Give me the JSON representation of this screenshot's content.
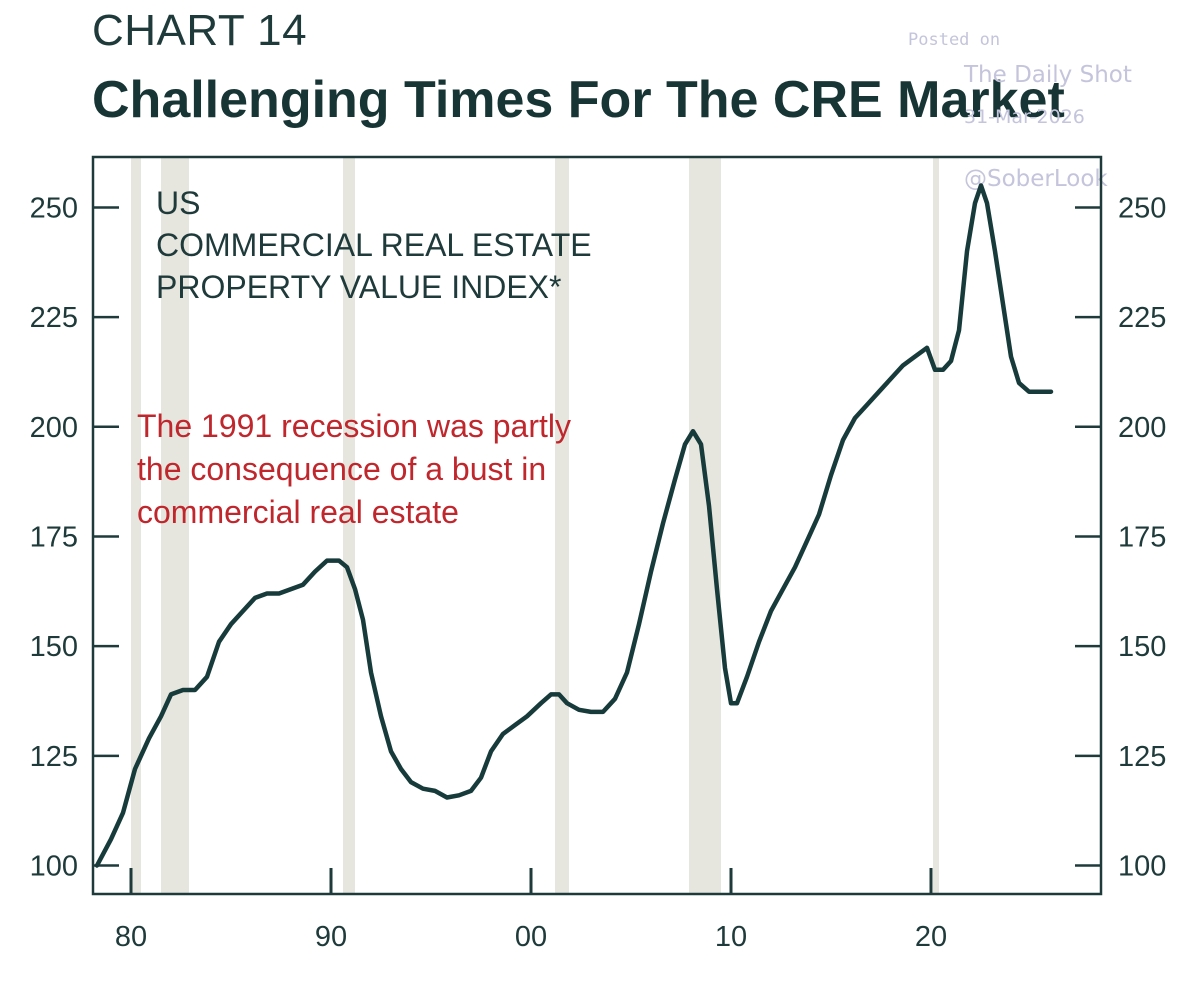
{
  "header": {
    "kicker": "CHART 14",
    "title": "Challenging Times For The CRE Market"
  },
  "watermark": {
    "posted": "Posted on",
    "source": "The Daily Shot",
    "date": "31-Mar-2026",
    "handle": "@SoberLook"
  },
  "chart_data": {
    "type": "line",
    "series": [
      {
        "values": [
          [
            1978.3,
            100
          ],
          [
            1979.0,
            106
          ],
          [
            1979.6,
            112
          ],
          [
            1980.2,
            122
          ],
          [
            1980.9,
            129
          ],
          [
            1981.5,
            134
          ],
          [
            1982.0,
            139
          ],
          [
            1982.6,
            140
          ],
          [
            1983.2,
            140
          ],
          [
            1983.8,
            143
          ],
          [
            1984.4,
            151
          ],
          [
            1985.0,
            155
          ],
          [
            1985.6,
            158
          ],
          [
            1986.2,
            161
          ],
          [
            1986.8,
            162
          ],
          [
            1987.4,
            162
          ],
          [
            1988.0,
            163
          ],
          [
            1988.6,
            164
          ],
          [
            1989.2,
            167
          ],
          [
            1989.8,
            169.5
          ],
          [
            1990.4,
            169.5
          ],
          [
            1990.8,
            168
          ],
          [
            1991.2,
            163
          ],
          [
            1991.6,
            156
          ],
          [
            1992.0,
            144
          ],
          [
            1992.5,
            134
          ],
          [
            1993.0,
            126
          ],
          [
            1993.5,
            122
          ],
          [
            1994.0,
            119
          ],
          [
            1994.6,
            117.5
          ],
          [
            1995.2,
            117
          ],
          [
            1995.8,
            115.5
          ],
          [
            1996.4,
            116
          ],
          [
            1997.0,
            117
          ],
          [
            1997.5,
            120
          ],
          [
            1998.0,
            126
          ],
          [
            1998.6,
            130
          ],
          [
            1999.2,
            132
          ],
          [
            1999.8,
            134
          ],
          [
            2000.5,
            137
          ],
          [
            2001.0,
            139
          ],
          [
            2001.4,
            139
          ],
          [
            2001.8,
            137
          ],
          [
            2002.4,
            135.5
          ],
          [
            2003.0,
            135
          ],
          [
            2003.6,
            135
          ],
          [
            2004.2,
            138
          ],
          [
            2004.8,
            144
          ],
          [
            2005.4,
            155
          ],
          [
            2006.0,
            167
          ],
          [
            2006.6,
            178
          ],
          [
            2007.2,
            188
          ],
          [
            2007.7,
            196
          ],
          [
            2008.1,
            199
          ],
          [
            2008.5,
            196
          ],
          [
            2008.9,
            182
          ],
          [
            2009.3,
            163
          ],
          [
            2009.7,
            145
          ],
          [
            2010.0,
            137
          ],
          [
            2010.3,
            137
          ],
          [
            2010.8,
            143
          ],
          [
            2011.4,
            151
          ],
          [
            2012.0,
            158
          ],
          [
            2012.6,
            163
          ],
          [
            2013.2,
            168
          ],
          [
            2013.8,
            174
          ],
          [
            2014.4,
            180
          ],
          [
            2015.0,
            189
          ],
          [
            2015.6,
            197
          ],
          [
            2016.2,
            202
          ],
          [
            2016.8,
            205
          ],
          [
            2017.4,
            208
          ],
          [
            2018.0,
            211
          ],
          [
            2018.6,
            214
          ],
          [
            2019.2,
            216
          ],
          [
            2019.8,
            218
          ],
          [
            2020.2,
            213
          ],
          [
            2020.6,
            213
          ],
          [
            2021.0,
            215
          ],
          [
            2021.4,
            222
          ],
          [
            2021.8,
            240
          ],
          [
            2022.2,
            251
          ],
          [
            2022.5,
            255
          ],
          [
            2022.8,
            251
          ],
          [
            2023.2,
            240
          ],
          [
            2023.6,
            228
          ],
          [
            2024.0,
            216
          ],
          [
            2024.4,
            210
          ],
          [
            2024.9,
            208
          ],
          [
            2025.5,
            208
          ],
          [
            2026.0,
            208
          ]
        ]
      }
    ],
    "recessions": [
      [
        1980.0,
        1980.5
      ],
      [
        1981.5,
        1982.9
      ],
      [
        1990.6,
        1991.2
      ],
      [
        2001.2,
        2001.9
      ],
      [
        2007.9,
        2009.5
      ],
      [
        2020.1,
        2020.4
      ]
    ],
    "xlim": [
      1978.1,
      2028.5
    ],
    "ylim": [
      93.5,
      261.5
    ],
    "x_ticks": [
      1980,
      1990,
      2000,
      2010,
      2020
    ],
    "x_tick_labels": [
      "80",
      "90",
      "00",
      "10",
      "20"
    ],
    "y_ticks": [
      100,
      125,
      150,
      175,
      200,
      225,
      250
    ],
    "y_tick_labels": [
      "100",
      "125",
      "150",
      "175",
      "200",
      "225",
      "250"
    ],
    "chart_label": [
      "US",
      "COMMERCIAL REAL ESTATE",
      "PROPERTY VALUE INDEX*"
    ],
    "annotation": [
      "The 1991 recession was partly",
      "the consequence of a bust in",
      "commercial real estate"
    ],
    "grid": false,
    "colors": {
      "line": "#173a3a",
      "recession": "#e6e6df",
      "annotation": "#c0272d",
      "axis": "#1f3a3a"
    }
  }
}
